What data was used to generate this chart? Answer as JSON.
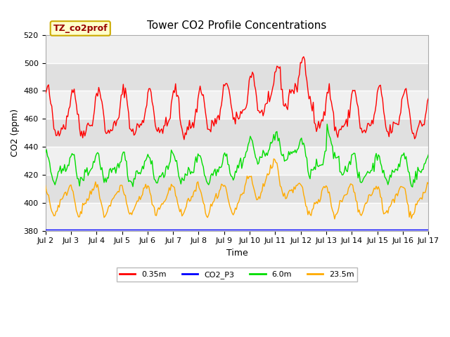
{
  "title": "Tower CO2 Profile Concentrations",
  "xlabel": "Time",
  "ylabel": "CO2 (ppm)",
  "ylim": [
    380,
    520
  ],
  "background_color": "#ffffff",
  "plot_bg_color": "#ebebeb",
  "grid_color": "#ffffff",
  "annotation_text": "TZ_co2prof",
  "annotation_bg": "#ffffcc",
  "annotation_edge": "#ccaa00",
  "annotation_text_color": "#990000",
  "xtick_labels": [
    "Jul 2",
    "Jul 3",
    "Jul 4",
    "Jul 5",
    "Jul 6",
    "Jul 7",
    "Jul 8",
    "Jul 9",
    "Jul 10",
    "Jul 11",
    "Jul 12",
    "Jul 13",
    "Jul 14",
    "Jul 15",
    "Jul 16",
    "Jul 17"
  ],
  "yticks": [
    380,
    400,
    420,
    440,
    460,
    480,
    500,
    520
  ],
  "series_colors": {
    "0.35m": "#ff0000",
    "CO2_P3": "#0000ff",
    "6.0m": "#00dd00",
    "23.5m": "#ffaa00"
  },
  "legend_labels": [
    "0.35m",
    "CO2_P3",
    "6.0m",
    "23.5m"
  ],
  "legend_colors": [
    "#ff0000",
    "#0000ff",
    "#00dd00",
    "#ffaa00"
  ],
  "title_fontsize": 11,
  "axis_label_fontsize": 9,
  "tick_fontsize": 8,
  "annotation_fontsize": 9,
  "lw": 1.0
}
